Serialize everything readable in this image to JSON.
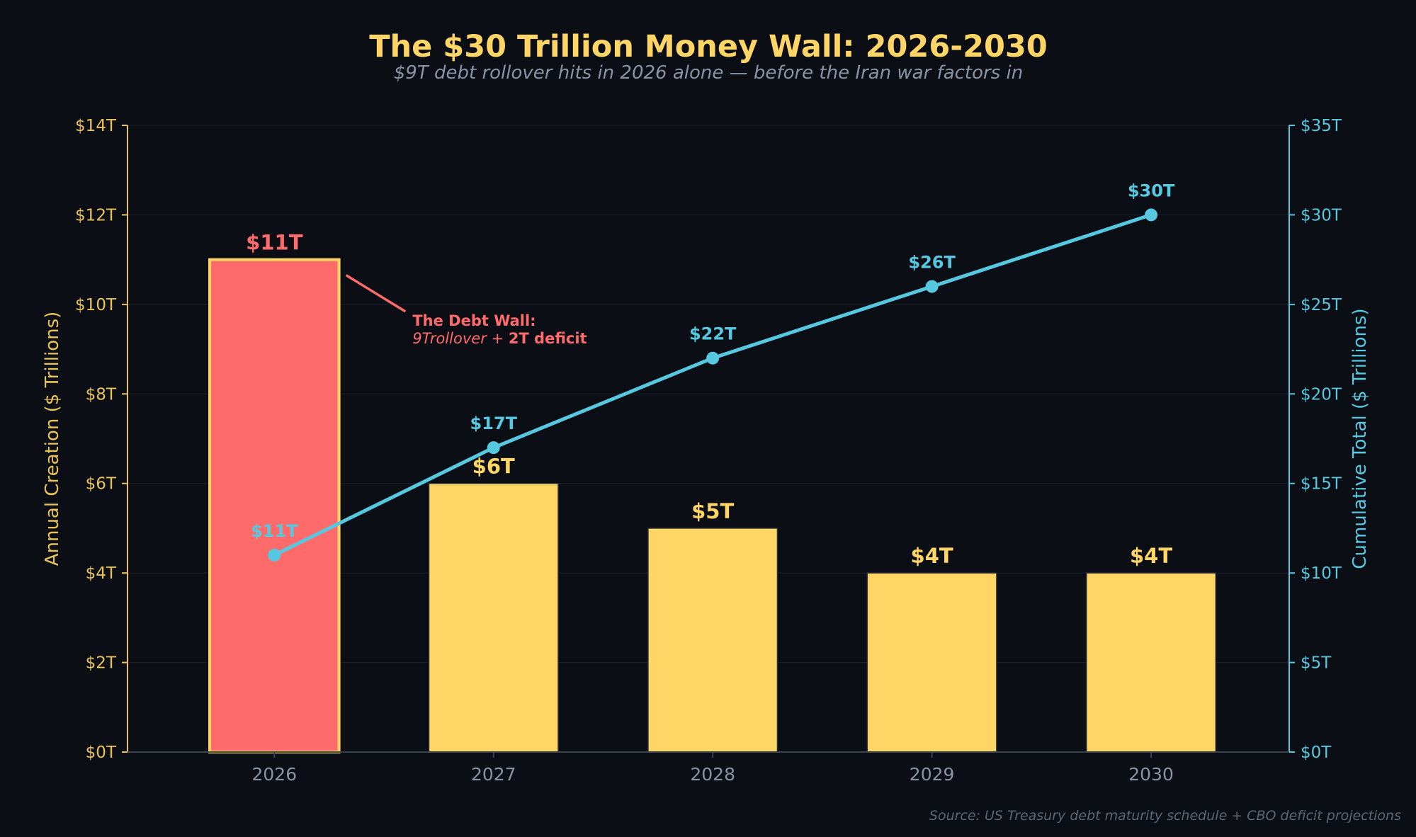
{
  "chart_data": {
    "type": "bar+line",
    "title": "The $30 Trillion Money Wall: 2026-2030",
    "subtitle": "$9T debt rollover hits in 2026 alone — before the Iran war factors in",
    "categories": [
      "2026",
      "2027",
      "2028",
      "2029",
      "2030"
    ],
    "series": [
      {
        "name": "Annual Creation",
        "type": "bar",
        "axis": "left",
        "values": [
          11,
          6,
          5,
          4,
          4
        ],
        "labels": [
          "$11T",
          "$6T",
          "$5T",
          "$4T",
          "$4T"
        ],
        "highlight_index": 0
      },
      {
        "name": "Cumulative Total",
        "type": "line",
        "axis": "right",
        "values": [
          11,
          17,
          22,
          26,
          30
        ],
        "labels": [
          "$11T",
          "$17T",
          "$22T",
          "$26T",
          "$30T"
        ]
      }
    ],
    "ylabel": "Annual Creation ($ Trillions)",
    "y2label": "Cumulative Total ($ Trillions)",
    "ylim": [
      0,
      14
    ],
    "y2lim": [
      0,
      35
    ],
    "yticks": [
      0,
      2,
      4,
      6,
      8,
      10,
      12,
      14
    ],
    "y2ticks": [
      0,
      5,
      10,
      15,
      20,
      25,
      30,
      35
    ],
    "ytick_labels": [
      "$0T",
      "$2T",
      "$4T",
      "$6T",
      "$8T",
      "$10T",
      "$12T",
      "$14T"
    ],
    "y2tick_labels": [
      "$0T",
      "$5T",
      "$10T",
      "$15T",
      "$20T",
      "$25T",
      "$30T",
      "$35T"
    ],
    "annotation": {
      "line1": "The Debt Wall:",
      "line2_italic": "9Trollover + ",
      "line2_bold": "2T deficit",
      "target_index": 0
    },
    "source": "Source: US Treasury debt maturity schedule + CBO deficit projections",
    "colors": {
      "background": "#0b0e15",
      "bar": "#ffd666",
      "bar_highlight": "#ff6b6b",
      "line": "#56c8e0",
      "title": "#ffd666",
      "subtitle": "#8a93a6",
      "left_axis": "#e8c35a",
      "right_axis": "#56c8e0",
      "xtick": "#8a93a6",
      "grid": "#1a1f29",
      "source": "#5c6575"
    }
  }
}
